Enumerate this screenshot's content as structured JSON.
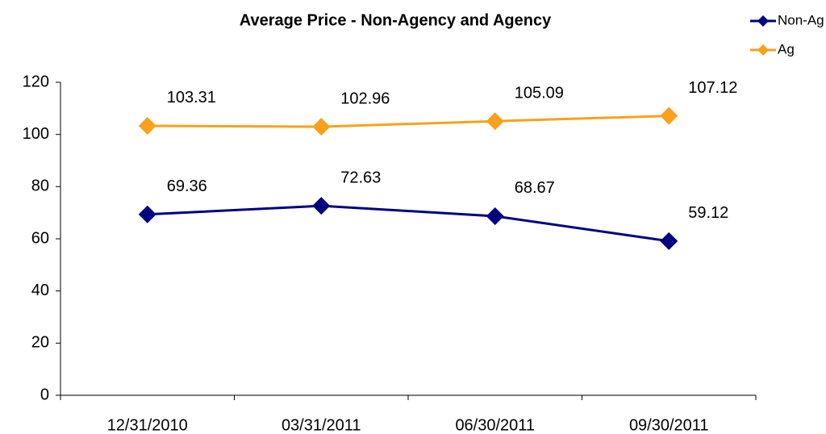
{
  "chart_data": {
    "type": "line",
    "title": "Average Price - Non-Agency and Agency",
    "categories": [
      "12/31/2010",
      "03/31/2011",
      "06/30/2011",
      "09/30/2011"
    ],
    "series": [
      {
        "name": "Non-Ag",
        "color": "#000080",
        "values": [
          69.36,
          72.63,
          68.67,
          59.12
        ]
      },
      {
        "name": "Ag",
        "color": "#F9A11B",
        "values": [
          103.31,
          102.96,
          105.09,
          107.12
        ]
      }
    ],
    "ylim": [
      0,
      120
    ],
    "yticks": [
      0,
      20,
      40,
      60,
      80,
      100,
      120
    ],
    "grid": false,
    "legend": "top-right"
  }
}
